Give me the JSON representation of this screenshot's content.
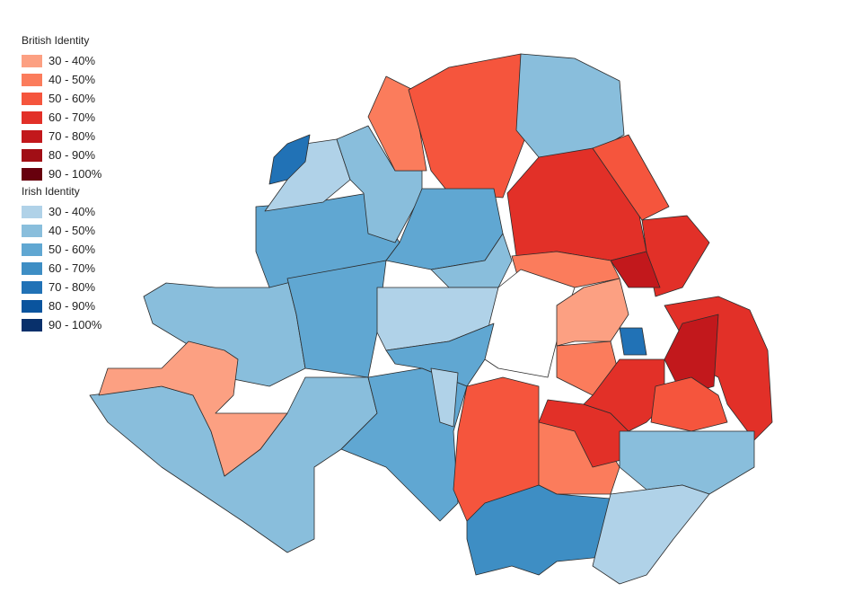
{
  "legend": {
    "british": {
      "title": "British Identity",
      "items": [
        {
          "label": "30 - 40%",
          "color": "#fca082"
        },
        {
          "label": "40 - 50%",
          "color": "#fb7c5c"
        },
        {
          "label": "50 - 60%",
          "color": "#f5553d"
        },
        {
          "label": "60 - 70%",
          "color": "#e23028"
        },
        {
          "label": "70 - 80%",
          "color": "#c2181c"
        },
        {
          "label": "80 - 90%",
          "color": "#a10e15"
        },
        {
          "label": "90 - 100%",
          "color": "#67000d"
        }
      ]
    },
    "irish": {
      "title": "Irish Identity",
      "items": [
        {
          "label": "30 - 40%",
          "color": "#b0d2e8"
        },
        {
          "label": "40 - 50%",
          "color": "#89bedc"
        },
        {
          "label": "50 - 60%",
          "color": "#60a7d2"
        },
        {
          "label": "60 - 70%",
          "color": "#3e8ec4"
        },
        {
          "label": "70 - 80%",
          "color": "#2172b6"
        },
        {
          "label": "80 - 90%",
          "color": "#0a549e"
        },
        {
          "label": "90 - 100%",
          "color": "#08306b"
        }
      ]
    }
  },
  "no_data_color": "#ffffff"
}
